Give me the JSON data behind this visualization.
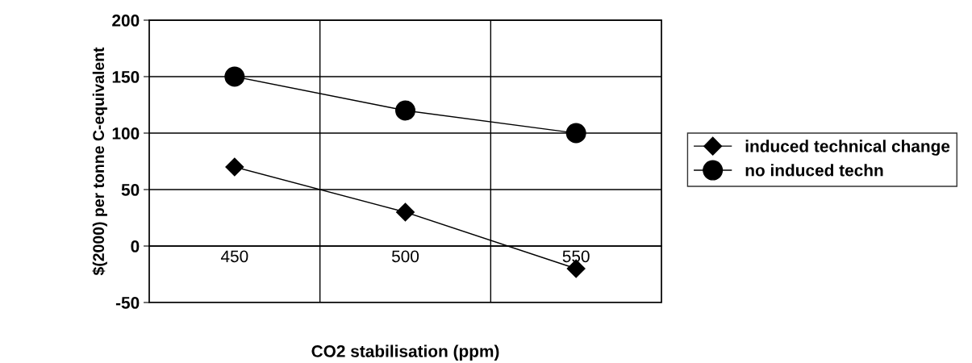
{
  "chart_data": {
    "type": "line",
    "xlabel": "CO2 stabilisation (ppm)",
    "ylabel": "$(2000) per tonne C-equivalent",
    "categories": [
      "450",
      "500",
      "550"
    ],
    "series": [
      {
        "name": "induced technical change",
        "color": "#000000",
        "values": [
          70,
          30,
          -20
        ],
        "marker": "diamond"
      },
      {
        "name": "no induced techn",
        "color": "#000000",
        "values": [
          150,
          120,
          100
        ],
        "marker": "circle"
      }
    ],
    "ylim": [
      -50,
      200
    ],
    "yticks": [
      -50,
      0,
      50,
      100,
      150,
      200
    ],
    "grid": true,
    "legend": "right",
    "line_style": "solid"
  }
}
